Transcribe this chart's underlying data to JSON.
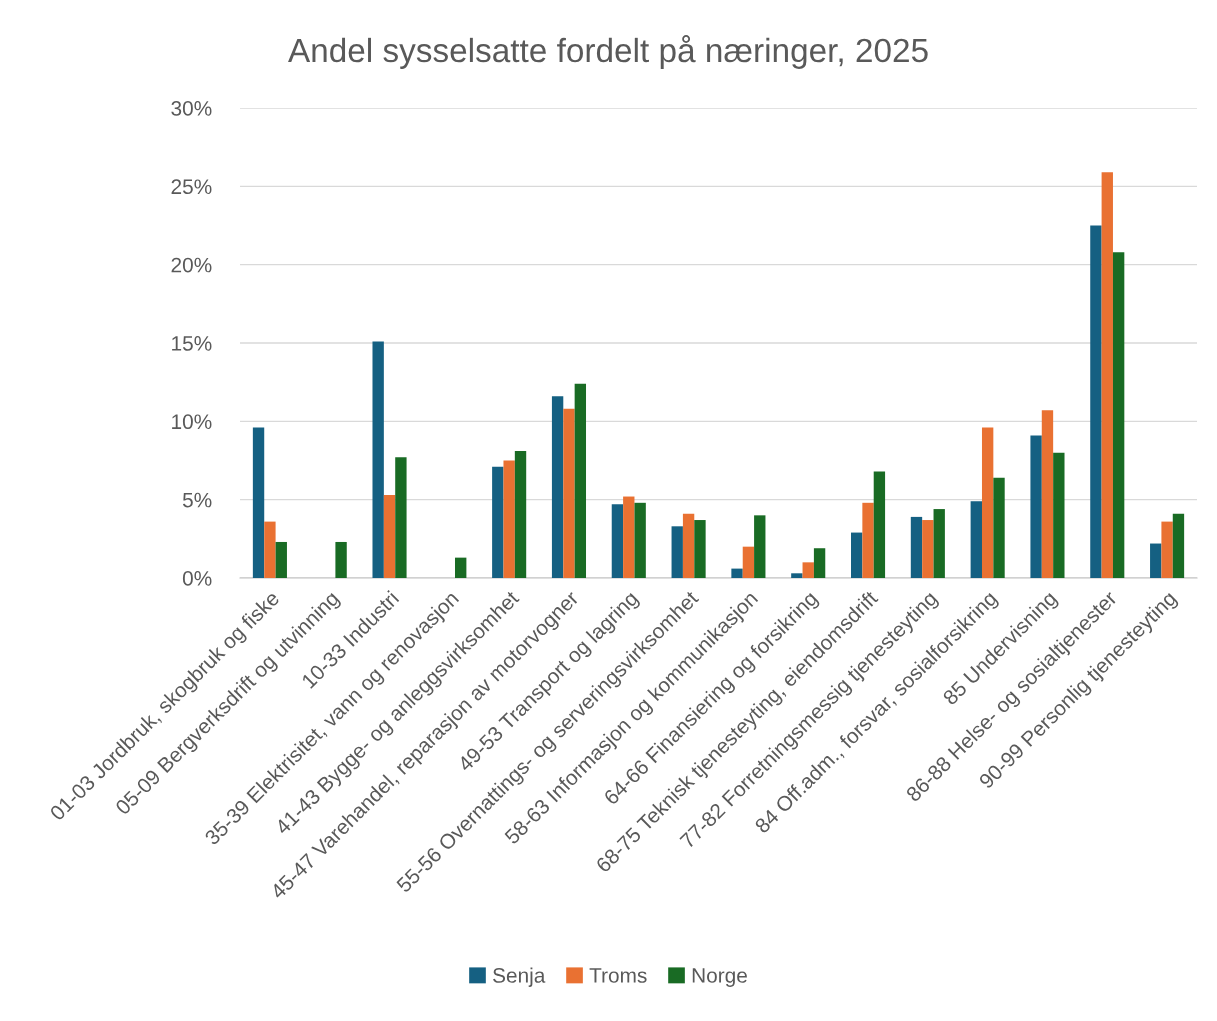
{
  "chart_data": {
    "type": "bar",
    "title": "Andel sysselsatte fordelt på næringer, 2025",
    "categories": [
      "01-03 Jordbruk, skogbruk og fiske",
      "05-09 Bergverksdrift og utvinning",
      "10-33 Industri",
      "35-39 Elektrisitet, vann og renovasjon",
      "41-43 Bygge- og anleggsvirksomhet",
      "45-47 Varehandel, reparasjon av motorvogner",
      "49-53 Transport og lagring",
      "55-56 Overnattings- og serveringsvirksomhet",
      "58-63 Informasjon og kommunikasjon",
      "64-66 Finansiering og forsikring",
      "68-75 Teknisk tjenesteyting, eiendomsdrift",
      "77-82 Forretningsmessig tjenesteyting",
      "84 Off.adm., forsvar, sosialforsikring",
      "85 Undervisning",
      "86-88 Helse- og sosialtjenester",
      "90-99 Personlig tjenesteyting"
    ],
    "series": [
      {
        "name": "Senja",
        "color": "#156082",
        "values": [
          9.6,
          null,
          15.1,
          null,
          7.1,
          11.6,
          4.7,
          3.3,
          0.6,
          0.3,
          2.9,
          3.9,
          4.9,
          9.1,
          22.5,
          2.2
        ]
      },
      {
        "name": "Troms",
        "color": "#e97132",
        "values": [
          3.6,
          null,
          5.3,
          null,
          7.5,
          10.8,
          5.2,
          4.1,
          2.0,
          1.0,
          4.8,
          3.7,
          9.6,
          10.7,
          25.9,
          3.6
        ]
      },
      {
        "name": "Norge",
        "color": "#196b24",
        "values": [
          2.3,
          2.3,
          7.7,
          1.3,
          8.1,
          12.4,
          4.8,
          3.7,
          4.0,
          1.9,
          6.8,
          4.4,
          6.4,
          8.0,
          20.8,
          4.1
        ]
      }
    ],
    "ylim": [
      0,
      30
    ],
    "yticks": [
      {
        "value": 0,
        "label": "0%"
      },
      {
        "value": 5,
        "label": "5%"
      },
      {
        "value": 10,
        "label": "10%"
      },
      {
        "value": 15,
        "label": "15%"
      },
      {
        "value": 20,
        "label": "20%"
      },
      {
        "value": 25,
        "label": "25%"
      },
      {
        "value": 30,
        "label": "30%"
      }
    ],
    "grid": "y",
    "legend": "bottom"
  }
}
